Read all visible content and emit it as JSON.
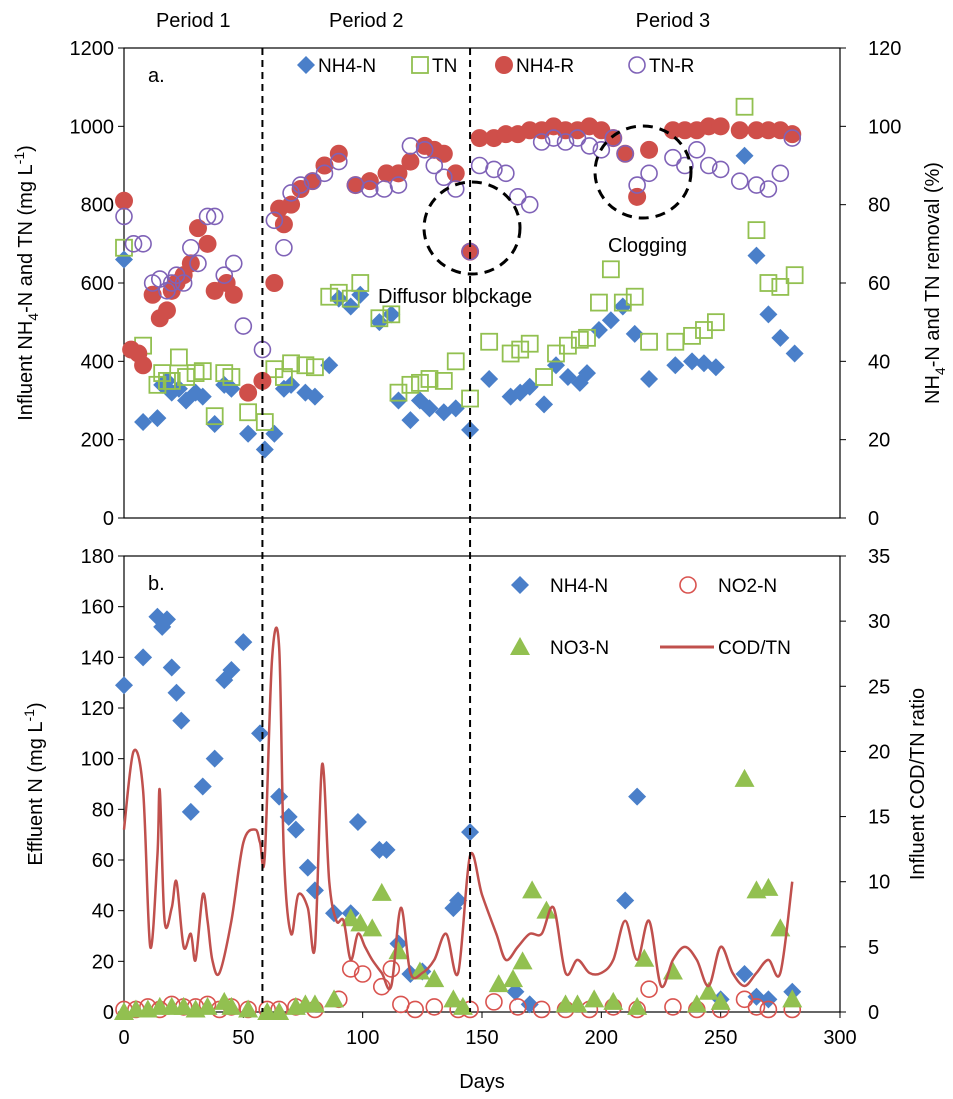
{
  "colors": {
    "nh4": "#4a7fc9",
    "tn": "#92c050",
    "nh4r": "#cf4f4a",
    "tnr": "#7f62b7",
    "no2": "#d9534f",
    "no3": "#92c050",
    "cod": "#c0504d"
  },
  "periods": [
    "Period 1",
    "Period 2",
    "Period 3"
  ],
  "period_boundaries": [
    58,
    145
  ],
  "annotations": [
    "Diffusor blockage",
    "Clogging"
  ],
  "shared_xlabel": "Days",
  "chart_data": [
    {
      "type": "scatter",
      "panel_label": "a.",
      "ylabel_parts": [
        "Influent NH",
        "4",
        "-N and TN (mg L",
        "-1",
        ")"
      ],
      "y2label_parts": [
        "NH",
        "4",
        "-N and TN removal (%)"
      ],
      "xlim": [
        0,
        300
      ],
      "ylim": [
        0,
        1200
      ],
      "y2lim": [
        0,
        120
      ],
      "xticks": [
        "0",
        "50",
        "100",
        "150",
        "200",
        "250",
        "300"
      ],
      "yticks": [
        "0",
        "200",
        "400",
        "600",
        "800",
        "1000",
        "1200"
      ],
      "y2ticks": [
        "0",
        "20",
        "40",
        "60",
        "80",
        "100",
        "120"
      ],
      "legend": [
        "NH4-N",
        "TN",
        "NH4-R",
        "TN-R"
      ],
      "series": [
        {
          "name": "NH4-N",
          "axis": "left",
          "marker": "diamond",
          "x": [
            0,
            8,
            14,
            16,
            18,
            20,
            23,
            26,
            30,
            33,
            38,
            42,
            45,
            52,
            59,
            63,
            67,
            70,
            76,
            80,
            86,
            90,
            95,
            99,
            107,
            112,
            115,
            120,
            124,
            128,
            134,
            139,
            145,
            153,
            162,
            166,
            170,
            176,
            181,
            186,
            191,
            194,
            199,
            204,
            209,
            214,
            220,
            231,
            238,
            243,
            248,
            260,
            265,
            270,
            275,
            281
          ],
          "y": [
            660,
            245,
            255,
            340,
            350,
            320,
            330,
            300,
            320,
            310,
            240,
            340,
            330,
            215,
            175,
            215,
            330,
            340,
            320,
            310,
            390,
            560,
            540,
            570,
            500,
            520,
            300,
            250,
            300,
            280,
            270,
            280,
            225,
            355,
            310,
            320,
            335,
            290,
            390,
            360,
            345,
            370,
            480,
            505,
            540,
            470,
            355,
            390,
            400,
            395,
            385,
            925,
            670,
            520,
            460,
            420
          ]
        },
        {
          "name": "TN",
          "axis": "left",
          "marker": "square",
          "x": [
            0,
            8,
            14,
            16,
            18,
            20,
            23,
            26,
            30,
            33,
            38,
            42,
            45,
            52,
            59,
            63,
            67,
            70,
            76,
            80,
            86,
            90,
            95,
            99,
            107,
            112,
            115,
            120,
            124,
            128,
            134,
            139,
            145,
            153,
            162,
            166,
            170,
            176,
            181,
            186,
            191,
            194,
            199,
            204,
            209,
            214,
            220,
            231,
            238,
            243,
            248,
            260,
            265,
            270,
            275,
            281
          ],
          "y": [
            690,
            440,
            340,
            370,
            350,
            350,
            410,
            360,
            370,
            375,
            260,
            370,
            360,
            270,
            245,
            380,
            360,
            395,
            390,
            385,
            565,
            575,
            560,
            600,
            510,
            520,
            320,
            340,
            345,
            355,
            350,
            400,
            305,
            450,
            420,
            430,
            445,
            360,
            420,
            440,
            455,
            460,
            550,
            635,
            550,
            565,
            450,
            450,
            465,
            480,
            500,
            1050,
            735,
            600,
            590,
            620
          ]
        },
        {
          "name": "NH4-R",
          "axis": "right",
          "marker": "circle",
          "x": [
            0,
            3,
            6,
            8,
            12,
            15,
            18,
            20,
            22,
            25,
            28,
            31,
            35,
            38,
            43,
            46,
            52,
            58,
            63,
            65,
            67,
            70,
            74,
            79,
            84,
            90,
            97,
            103,
            110,
            115,
            120,
            126,
            130,
            134,
            139,
            145,
            149,
            155,
            160,
            165,
            170,
            175,
            180,
            185,
            190,
            195,
            200,
            205,
            210,
            215,
            220,
            230,
            235,
            240,
            245,
            250,
            258,
            265,
            270,
            275,
            280
          ],
          "y": [
            81,
            43,
            42,
            39,
            57,
            51,
            53,
            58,
            60,
            62,
            65,
            74,
            70,
            58,
            60,
            57,
            32,
            35,
            60,
            79,
            75,
            80,
            84,
            86,
            90,
            93,
            85,
            86,
            88,
            88,
            91,
            95,
            94,
            93,
            88,
            68,
            97,
            97,
            98,
            98,
            99,
            99,
            100,
            99,
            99,
            100,
            99,
            97,
            93,
            82,
            94,
            99,
            99,
            99,
            100,
            100,
            99,
            99,
            99,
            99,
            98
          ]
        },
        {
          "name": "TN-R",
          "axis": "right",
          "marker": "circle-open",
          "x": [
            0,
            4,
            8,
            12,
            15,
            18,
            20,
            22,
            25,
            28,
            31,
            35,
            38,
            42,
            46,
            50,
            58,
            63,
            67,
            70,
            74,
            79,
            84,
            90,
            97,
            103,
            109,
            115,
            120,
            126,
            130,
            134,
            139,
            145,
            149,
            155,
            160,
            165,
            170,
            175,
            180,
            185,
            190,
            195,
            200,
            205,
            210,
            215,
            220,
            230,
            235,
            240,
            245,
            250,
            258,
            265,
            270,
            275,
            280
          ],
          "y": [
            77,
            70,
            70,
            60,
            61,
            58,
            60,
            62,
            60,
            69,
            65,
            77,
            77,
            62,
            65,
            49,
            43,
            76,
            69,
            83,
            85,
            86,
            88,
            91,
            85,
            84,
            84,
            85,
            95,
            94,
            90,
            87,
            84,
            68,
            90,
            89,
            88,
            82,
            80,
            96,
            97,
            96,
            97,
            95,
            94,
            97,
            93,
            85,
            88,
            92,
            90,
            94,
            90,
            89,
            86,
            85,
            84,
            88,
            97
          ]
        }
      ]
    },
    {
      "type": "scatter+line",
      "panel_label": "b.",
      "ylabel_parts": [
        "Effluent N  (mg L",
        "-1",
        ")"
      ],
      "y2label_parts": [
        "Influent COD/TN ratio"
      ],
      "xlim": [
        0,
        300
      ],
      "ylim": [
        0,
        180
      ],
      "y2lim": [
        0,
        35
      ],
      "xticks": [
        "0",
        "50",
        "100",
        "150",
        "200",
        "250",
        "300"
      ],
      "yticks": [
        "0",
        "20",
        "40",
        "60",
        "80",
        "100",
        "120",
        "140",
        "160",
        "180"
      ],
      "y2ticks": [
        "0",
        "5",
        "10",
        "15",
        "20",
        "25",
        "30",
        "35"
      ],
      "xlabel": "Days",
      "legend": [
        "NH4-N",
        "NO2-N",
        "NO3-N",
        "COD/TN"
      ],
      "series": [
        {
          "name": "NH4-N",
          "axis": "left",
          "marker": "diamond",
          "x": [
            0,
            8,
            14,
            16,
            18,
            20,
            22,
            24,
            28,
            33,
            38,
            42,
            45,
            50,
            57,
            65,
            69,
            72,
            77,
            80,
            88,
            95,
            98,
            107,
            110,
            115,
            120,
            125,
            138,
            140,
            145,
            164,
            170,
            210,
            215,
            250,
            260,
            265,
            270,
            280
          ],
          "y": [
            129,
            140,
            156,
            152,
            155,
            136,
            126,
            115,
            79,
            89,
            100,
            131,
            135,
            146,
            110,
            85,
            77,
            72,
            57,
            48,
            39,
            39,
            75,
            64,
            64,
            27,
            15,
            16,
            41,
            44,
            71,
            8,
            3,
            44,
            85,
            5,
            15,
            6,
            5,
            8
          ]
        },
        {
          "name": "NO2-N",
          "axis": "left",
          "marker": "circle-open",
          "x": [
            0,
            5,
            10,
            15,
            20,
            25,
            30,
            35,
            40,
            45,
            52,
            60,
            65,
            72,
            80,
            90,
            95,
            100,
            108,
            112,
            116,
            122,
            130,
            140,
            145,
            155,
            165,
            175,
            185,
            195,
            205,
            215,
            220,
            230,
            240,
            250,
            260,
            265,
            270,
            280
          ],
          "y": [
            1,
            1,
            2,
            1,
            3,
            2,
            2,
            3,
            1,
            2,
            1,
            1,
            1,
            2,
            1,
            5,
            17,
            15,
            10,
            17,
            3,
            1,
            2,
            1,
            1,
            4,
            2,
            1,
            1,
            1,
            2,
            1,
            9,
            2,
            1,
            1,
            5,
            2,
            1,
            1
          ]
        },
        {
          "name": "NO3-N",
          "axis": "left",
          "marker": "triangle",
          "x": [
            0,
            5,
            10,
            15,
            20,
            25,
            30,
            35,
            42,
            45,
            52,
            60,
            65,
            72,
            76,
            80,
            88,
            95,
            99,
            104,
            108,
            115,
            124,
            130,
            138,
            142,
            157,
            163,
            167,
            171,
            177,
            185,
            190,
            197,
            205,
            215,
            218,
            230,
            240,
            245,
            250,
            260,
            265,
            270,
            275,
            280
          ],
          "y": [
            0,
            1,
            1,
            2,
            2,
            2,
            1,
            2,
            4,
            2,
            1,
            0,
            0,
            2,
            3,
            3,
            5,
            37,
            35,
            33,
            47,
            24,
            16,
            13,
            5,
            2,
            11,
            13,
            20,
            48,
            40,
            3,
            3,
            5,
            4,
            2,
            21,
            16,
            3,
            8,
            4,
            92,
            48,
            49,
            33,
            5
          ]
        },
        {
          "name": "COD/TN",
          "axis": "right",
          "marker": "line",
          "x": [
            0,
            4,
            8,
            11,
            14,
            15,
            17,
            20,
            22,
            25,
            28,
            30,
            33,
            35,
            37,
            40,
            45,
            50,
            55,
            57,
            59,
            62,
            65,
            67,
            70,
            73,
            77,
            80,
            83,
            86,
            89,
            92,
            95,
            98,
            101,
            104,
            108,
            112,
            116,
            120,
            125,
            130,
            135,
            140,
            145,
            150,
            156,
            160,
            165,
            170,
            175,
            180,
            185,
            190,
            195,
            200,
            205,
            210,
            215,
            220,
            225,
            230,
            235,
            240,
            245,
            250,
            255,
            260,
            265,
            270,
            275,
            280
          ],
          "y": [
            14,
            20,
            17,
            5,
            12,
            17,
            7,
            8,
            10,
            5,
            6,
            4,
            9,
            7,
            4,
            3,
            7,
            13,
            14,
            13,
            12,
            27,
            28,
            12,
            6,
            9,
            8,
            5,
            19,
            10,
            7,
            7,
            4,
            6,
            5,
            4,
            3,
            2,
            8,
            3,
            3,
            4,
            6,
            3,
            12,
            9,
            6,
            4,
            5,
            6,
            6,
            8,
            3,
            4,
            3,
            3,
            4,
            7,
            4,
            7,
            2,
            4,
            5,
            4,
            2,
            5,
            3,
            2,
            3,
            4,
            3,
            10
          ]
        }
      ]
    }
  ]
}
